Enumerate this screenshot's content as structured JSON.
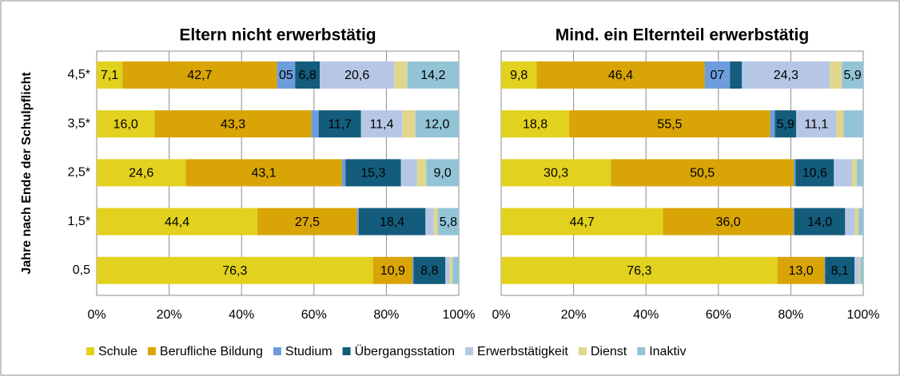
{
  "chart_data": [
    {
      "type": "stacked-bar-horizontal",
      "title": "Eltern nicht erwerbstätig",
      "y_label": "Jahre nach Ende der Schulpflicht",
      "categories": [
        "4,5*",
        "3,5*",
        "2,5*",
        "1,5*",
        "0,5"
      ],
      "xlim": [
        0,
        100
      ],
      "xticks": [
        {
          "value": 0,
          "label": "0%"
        },
        {
          "value": 20,
          "label": "20%"
        },
        {
          "value": 40,
          "label": "40%"
        },
        {
          "value": 60,
          "label": "60%"
        },
        {
          "value": 80,
          "label": "80%"
        },
        {
          "value": 100,
          "label": "100%"
        }
      ],
      "grid": true,
      "series": [
        {
          "name": "Schule",
          "color": "#e2d11e",
          "values": [
            7.1,
            16.0,
            24.6,
            44.4,
            76.3
          ],
          "value_labels": [
            "7,1",
            "16,0",
            "24,6",
            "44,4",
            "76,3"
          ]
        },
        {
          "name": "Berufliche Bildung",
          "color": "#d9a406",
          "values": [
            42.7,
            43.3,
            43.1,
            27.5,
            10.9
          ],
          "value_labels": [
            "42,7",
            "43,3",
            "43,1",
            "27,5",
            "10,9"
          ]
        },
        {
          "name": "Studium",
          "color": "#6d9ddc",
          "values": [
            5,
            2.0,
            1.0,
            0.5,
            0.3
          ],
          "value_labels": [
            "05",
            null,
            null,
            null,
            null
          ]
        },
        {
          "name": "Übergangsstation",
          "color": "#145c7c",
          "values": [
            6.8,
            11.7,
            15.3,
            18.4,
            8.8
          ],
          "value_labels": [
            "6,8",
            "11,7",
            "15,3",
            "18,4",
            "8,8"
          ]
        },
        {
          "name": "Erwerbstätigkeit",
          "color": "#b6c7e6",
          "values": [
            20.6,
            11.4,
            4.5,
            2.3,
            1.2
          ],
          "value_labels": [
            "20,6",
            "11,4",
            null,
            null,
            null
          ]
        },
        {
          "name": "Dienst",
          "color": "#e0d68e",
          "values": [
            3.6,
            3.6,
            2.5,
            1.1,
            0.8
          ],
          "value_labels": [
            null,
            null,
            null,
            null,
            null
          ]
        },
        {
          "name": "Inaktiv",
          "color": "#93c4d6",
          "values": [
            14.2,
            12.0,
            9.0,
            5.8,
            1.7
          ],
          "value_labels": [
            "14,2",
            "12,0",
            "9,0",
            "5,8",
            null
          ]
        }
      ],
      "legend": "bottom"
    },
    {
      "type": "stacked-bar-horizontal",
      "title": "Mind. ein Elternteil erwerbstätig",
      "xlim": [
        0,
        100
      ],
      "xticks": [
        {
          "value": 0,
          "label": "0%"
        },
        {
          "value": 20,
          "label": "20%"
        },
        {
          "value": 40,
          "label": "40%"
        },
        {
          "value": 60,
          "label": "60%"
        },
        {
          "value": 80,
          "label": "80%"
        },
        {
          "value": 100,
          "label": "100%"
        }
      ],
      "grid": true,
      "series": [
        {
          "values": [
            9.8,
            18.8,
            30.3,
            44.7,
            76.3
          ],
          "value_labels": [
            "9,8",
            "18,8",
            "30,3",
            "44,7",
            "76,3"
          ]
        },
        {
          "values": [
            46.4,
            55.5,
            50.5,
            36.0,
            13.0
          ],
          "value_labels": [
            "46,4",
            "55,5",
            "50,5",
            "36,0",
            "13,0"
          ]
        },
        {
          "values": [
            7,
            1.3,
            0.5,
            0.3,
            0.2
          ],
          "value_labels": [
            "07",
            null,
            null,
            null,
            null
          ]
        },
        {
          "values": [
            3.3,
            5.9,
            10.6,
            14.0,
            8.1
          ],
          "value_labels": [
            null,
            "5,9",
            "10,6",
            "14,0",
            "8,1"
          ]
        },
        {
          "values": [
            24.3,
            11.1,
            5.0,
            2.7,
            1.2
          ],
          "value_labels": [
            "24,3",
            "11,1",
            null,
            null,
            null
          ]
        },
        {
          "values": [
            3.3,
            2.0,
            1.3,
            1.0,
            0.4
          ],
          "value_labels": [
            null,
            null,
            null,
            null,
            null
          ]
        },
        {
          "values": [
            5.9,
            5.4,
            1.8,
            1.3,
            0.8
          ],
          "value_labels": [
            "5,9",
            null,
            null,
            null,
            null
          ]
        }
      ]
    }
  ]
}
